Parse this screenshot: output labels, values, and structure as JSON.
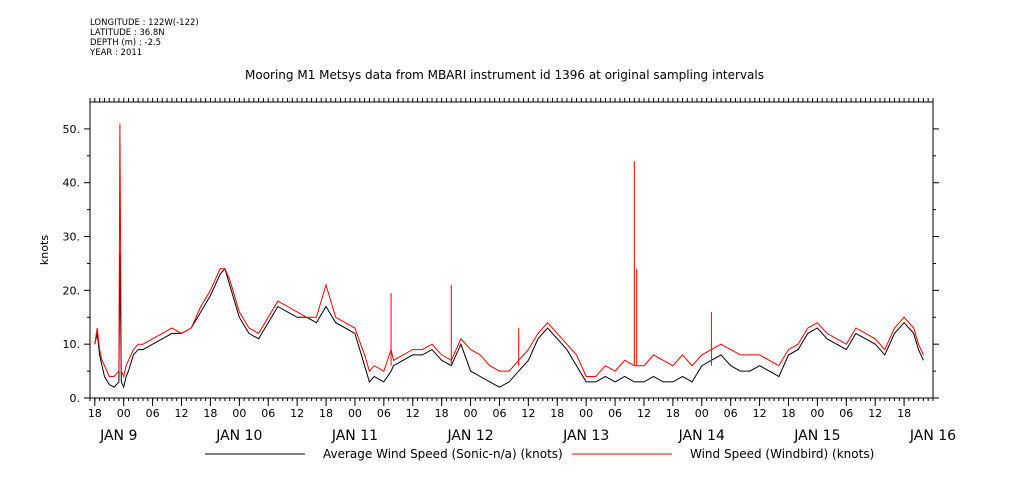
{
  "header": {
    "longitude": "LONGITUDE : 122W(-122)",
    "latitude": "LATITUDE : 36.8N",
    "depth": "DEPTH (m) : -2.5",
    "year": "YEAR : 2011"
  },
  "chart_data": {
    "type": "line",
    "title": "Mooring M1 Metsys data from MBARI instrument id 1396 at original sampling intervals",
    "ylabel": "knots",
    "ylim": [
      0,
      55
    ],
    "yticks": [
      0,
      10,
      20,
      30,
      40,
      50
    ],
    "ytick_labels": [
      "0.",
      "10.",
      "20.",
      "30.",
      "40.",
      "50."
    ],
    "xlim_hours": [
      -7,
      168
    ],
    "hour_tick_labels": [
      "18",
      "00",
      "06",
      "12",
      "18",
      "00",
      "06",
      "12",
      "18",
      "00",
      "06",
      "12",
      "18",
      "00",
      "06",
      "12",
      "18",
      "00",
      "06",
      "12",
      "18",
      "00",
      "06",
      "12",
      "18",
      "00",
      "06",
      "12",
      "18"
    ],
    "date_labels": [
      "JAN  9",
      "JAN 10",
      "JAN 11",
      "JAN 12",
      "JAN 13",
      "JAN 14",
      "JAN 15",
      "JAN 16"
    ],
    "grid": false,
    "legend_position": "bottom",
    "series": [
      {
        "name": "Average Wind Speed (Sonic-n/a) (knots)",
        "color": "#000000",
        "x_hours": [
          -6,
          -5.5,
          -5,
          -4.5,
          -4,
          -3,
          -2,
          -1,
          -0.8,
          -0.5,
          0,
          0.5,
          1,
          2,
          3,
          4,
          6,
          8,
          10,
          12,
          14,
          16,
          18,
          20,
          21,
          22,
          24,
          26,
          28,
          30,
          32,
          34,
          36,
          38,
          40,
          42,
          44,
          46,
          48,
          50,
          51,
          52,
          54,
          55.5,
          56,
          58,
          60,
          62,
          64,
          66,
          68,
          70,
          72,
          74,
          76,
          78,
          80,
          82,
          84,
          86,
          88,
          90,
          92,
          94,
          96,
          98,
          100,
          102,
          104,
          106,
          108,
          110,
          112,
          114,
          116,
          118,
          120,
          122,
          124,
          126,
          128,
          130,
          132,
          134,
          136,
          138,
          140,
          142,
          144,
          146,
          148,
          150,
          152,
          154,
          156,
          158,
          160,
          162,
          164,
          165,
          166
        ],
        "y": [
          10,
          12,
          8,
          6,
          4,
          2.5,
          2,
          3,
          27,
          3,
          2,
          4,
          5,
          8,
          9,
          9,
          10,
          11,
          12,
          12,
          13,
          16,
          19,
          23,
          24,
          21,
          15,
          12,
          11,
          14,
          17,
          16,
          15,
          15,
          14,
          17,
          14,
          13,
          12,
          6,
          3,
          4,
          3,
          5,
          6,
          7,
          8,
          8,
          9,
          7,
          6,
          10,
          5,
          4,
          3,
          2,
          3,
          5,
          7,
          11,
          13,
          11,
          9,
          6,
          3,
          3,
          4,
          3,
          4,
          3,
          3,
          4,
          3,
          3,
          4,
          3,
          6,
          7,
          8,
          6,
          5,
          5,
          6,
          5,
          4,
          8,
          9,
          12,
          13,
          11,
          10,
          9,
          12,
          11,
          10,
          8,
          12,
          14,
          12,
          9,
          7
        ],
        "spikes": []
      },
      {
        "name": "Wind Speed (Windbird) (knots)",
        "color": "#ff0000",
        "x_hours": [
          -6,
          -5.5,
          -5,
          -4.5,
          -4,
          -3,
          -2,
          -1,
          -0.8,
          -0.5,
          0,
          0.5,
          1,
          2,
          3,
          4,
          6,
          8,
          10,
          12,
          14,
          16,
          18,
          20,
          21,
          22,
          24,
          26,
          28,
          30,
          32,
          34,
          36,
          38,
          40,
          42,
          44,
          46,
          48,
          50,
          51,
          52,
          54,
          55.5,
          56,
          58,
          60,
          62,
          64,
          66,
          68,
          70,
          72,
          74,
          76,
          78,
          80,
          82,
          84,
          86,
          88,
          90,
          92,
          94,
          96,
          98,
          100,
          102,
          104,
          106,
          108,
          110,
          112,
          114,
          116,
          118,
          120,
          122,
          124,
          126,
          128,
          130,
          132,
          134,
          136,
          138,
          140,
          142,
          144,
          146,
          148,
          150,
          152,
          154,
          156,
          158,
          160,
          162,
          164,
          165,
          166
        ],
        "y": [
          10,
          13,
          9,
          7,
          6,
          4,
          4,
          5,
          51,
          5,
          4,
          6,
          7,
          9,
          10,
          10,
          11,
          12,
          13,
          12,
          13,
          17,
          20,
          24,
          24,
          22,
          16,
          13,
          12,
          15,
          18,
          17,
          16,
          15,
          15,
          21,
          15,
          14,
          13,
          8,
          5,
          6,
          5,
          9,
          7,
          8,
          9,
          9,
          10,
          8,
          7,
          11,
          9,
          8,
          6,
          5,
          5,
          7,
          9,
          12,
          14,
          12,
          10,
          8,
          4,
          4,
          6,
          5,
          7,
          6,
          6,
          8,
          7,
          6,
          8,
          6,
          8,
          9,
          10,
          9,
          8,
          8,
          8,
          7,
          6,
          9,
          10,
          13,
          14,
          12,
          11,
          10,
          13,
          12,
          11,
          9,
          13,
          15,
          13,
          10,
          8
        ],
        "spikes": [
          [
            55.5,
            19.5
          ],
          [
            68,
            21
          ],
          [
            82,
            13
          ],
          [
            106,
            44
          ],
          [
            106.5,
            24
          ],
          [
            122,
            16
          ]
        ]
      }
    ]
  }
}
